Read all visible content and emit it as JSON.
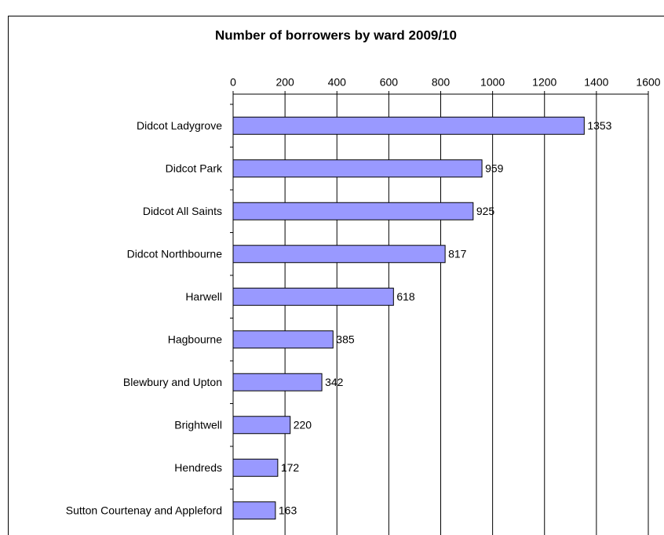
{
  "chart_data": {
    "type": "bar",
    "orientation": "horizontal",
    "title": "Number of borrowers by ward 2009/10",
    "categories": [
      "Didcot Ladygrove",
      "Didcot Park",
      "Didcot All Saints",
      "Didcot Northbourne",
      "Harwell",
      "Hagbourne",
      "Blewbury and Upton",
      "Brightwell",
      "Hendreds",
      "Sutton Courtenay and Appleford"
    ],
    "values": [
      1353,
      959,
      925,
      817,
      618,
      385,
      342,
      220,
      172,
      163
    ],
    "color": "#9999ff",
    "xlim": [
      0,
      1600
    ],
    "xticks": [
      0,
      200,
      400,
      600,
      800,
      1000,
      1200,
      1400,
      1600
    ],
    "grid": true
  }
}
